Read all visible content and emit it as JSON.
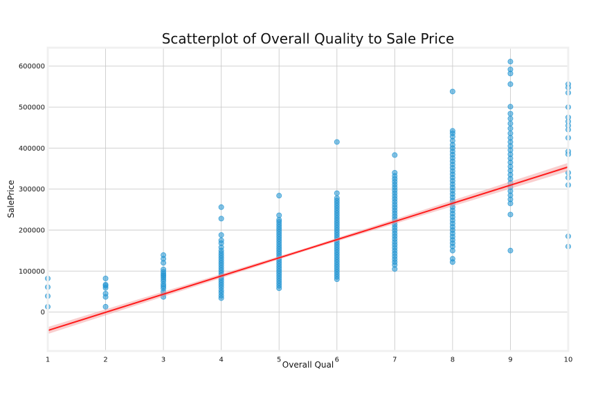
{
  "chart_data": {
    "type": "scatter",
    "title": "Scatterplot of Overall Quality to Sale Price",
    "xlabel": "Overall Qual",
    "ylabel": "SalePrice",
    "xlim": [
      1,
      10
    ],
    "ylim": [
      -95000,
      645000
    ],
    "x_ticks": [
      1,
      2,
      3,
      4,
      5,
      6,
      7,
      8,
      9,
      10
    ],
    "y_ticks": [
      0,
      100000,
      200000,
      300000,
      400000,
      500000,
      600000
    ],
    "grid": true,
    "legend": "none",
    "point_color": "#1f93d2",
    "regression_line": {
      "color": "#ff1a1a",
      "band_color": "#f4a6a6",
      "points": [
        [
          1,
          -45000
        ],
        [
          10,
          354000
        ]
      ]
    },
    "series": [
      {
        "points": [
          [
            1,
            82000
          ],
          [
            1,
            61000
          ],
          [
            1,
            39000
          ],
          [
            1,
            13000
          ],
          [
            2,
            82000
          ],
          [
            2,
            67000
          ],
          [
            2,
            64000
          ],
          [
            2,
            59000
          ],
          [
            2,
            45000
          ],
          [
            2,
            37000
          ],
          [
            2,
            13000
          ],
          [
            3,
            139000
          ],
          [
            3,
            130000
          ],
          [
            3,
            120000
          ],
          [
            3,
            104000
          ],
          [
            3,
            98000
          ],
          [
            3,
            93000
          ],
          [
            3,
            89000
          ],
          [
            3,
            85000
          ],
          [
            3,
            80000
          ],
          [
            3,
            75000
          ],
          [
            3,
            68000
          ],
          [
            3,
            63000
          ],
          [
            3,
            58000
          ],
          [
            3,
            50000
          ],
          [
            3,
            44000
          ],
          [
            3,
            37000
          ],
          [
            4,
            256000
          ],
          [
            4,
            228000
          ],
          [
            4,
            188000
          ],
          [
            4,
            175000
          ],
          [
            4,
            168000
          ],
          [
            4,
            158000
          ],
          [
            4,
            150000
          ],
          [
            4,
            144000
          ],
          [
            4,
            138000
          ],
          [
            4,
            132000
          ],
          [
            4,
            126000
          ],
          [
            4,
            120000
          ],
          [
            4,
            114000
          ],
          [
            4,
            108000
          ],
          [
            4,
            102000
          ],
          [
            4,
            96000
          ],
          [
            4,
            90000
          ],
          [
            4,
            84000
          ],
          [
            4,
            78000
          ],
          [
            4,
            72000
          ],
          [
            4,
            66000
          ],
          [
            4,
            60000
          ],
          [
            4,
            53000
          ],
          [
            4,
            47000
          ],
          [
            4,
            40000
          ],
          [
            4,
            34000
          ],
          [
            5,
            284000
          ],
          [
            5,
            236000
          ],
          [
            5,
            225000
          ],
          [
            5,
            220000
          ],
          [
            5,
            214000
          ],
          [
            5,
            208000
          ],
          [
            5,
            202000
          ],
          [
            5,
            196000
          ],
          [
            5,
            190000
          ],
          [
            5,
            184000
          ],
          [
            5,
            178000
          ],
          [
            5,
            172000
          ],
          [
            5,
            166000
          ],
          [
            5,
            160000
          ],
          [
            5,
            154000
          ],
          [
            5,
            148000
          ],
          [
            5,
            142000
          ],
          [
            5,
            136000
          ],
          [
            5,
            130000
          ],
          [
            5,
            124000
          ],
          [
            5,
            118000
          ],
          [
            5,
            112000
          ],
          [
            5,
            106000
          ],
          [
            5,
            100000
          ],
          [
            5,
            94000
          ],
          [
            5,
            88000
          ],
          [
            5,
            82000
          ],
          [
            5,
            76000
          ],
          [
            5,
            70000
          ],
          [
            5,
            64000
          ],
          [
            5,
            58000
          ],
          [
            6,
            415000
          ],
          [
            6,
            290000
          ],
          [
            6,
            278000
          ],
          [
            6,
            272000
          ],
          [
            6,
            266000
          ],
          [
            6,
            260000
          ],
          [
            6,
            254000
          ],
          [
            6,
            248000
          ],
          [
            6,
            242000
          ],
          [
            6,
            236000
          ],
          [
            6,
            230000
          ],
          [
            6,
            224000
          ],
          [
            6,
            218000
          ],
          [
            6,
            212000
          ],
          [
            6,
            206000
          ],
          [
            6,
            200000
          ],
          [
            6,
            194000
          ],
          [
            6,
            188000
          ],
          [
            6,
            182000
          ],
          [
            6,
            176000
          ],
          [
            6,
            170000
          ],
          [
            6,
            164000
          ],
          [
            6,
            158000
          ],
          [
            6,
            152000
          ],
          [
            6,
            146000
          ],
          [
            6,
            140000
          ],
          [
            6,
            134000
          ],
          [
            6,
            128000
          ],
          [
            6,
            122000
          ],
          [
            6,
            116000
          ],
          [
            6,
            110000
          ],
          [
            6,
            104000
          ],
          [
            6,
            98000
          ],
          [
            6,
            92000
          ],
          [
            6,
            86000
          ],
          [
            6,
            80000
          ],
          [
            7,
            383000
          ],
          [
            7,
            340000
          ],
          [
            7,
            332000
          ],
          [
            7,
            325000
          ],
          [
            7,
            318000
          ],
          [
            7,
            311000
          ],
          [
            7,
            304000
          ],
          [
            7,
            297000
          ],
          [
            7,
            290000
          ],
          [
            7,
            283000
          ],
          [
            7,
            276000
          ],
          [
            7,
            269000
          ],
          [
            7,
            262000
          ],
          [
            7,
            255000
          ],
          [
            7,
            248000
          ],
          [
            7,
            241000
          ],
          [
            7,
            234000
          ],
          [
            7,
            227000
          ],
          [
            7,
            220000
          ],
          [
            7,
            213000
          ],
          [
            7,
            206000
          ],
          [
            7,
            199000
          ],
          [
            7,
            192000
          ],
          [
            7,
            185000
          ],
          [
            7,
            178000
          ],
          [
            7,
            171000
          ],
          [
            7,
            164000
          ],
          [
            7,
            157000
          ],
          [
            7,
            150000
          ],
          [
            7,
            143000
          ],
          [
            7,
            136000
          ],
          [
            7,
            129000
          ],
          [
            7,
            122000
          ],
          [
            7,
            115000
          ],
          [
            7,
            105000
          ],
          [
            8,
            538000
          ],
          [
            8,
            442000
          ],
          [
            8,
            436000
          ],
          [
            8,
            428000
          ],
          [
            8,
            418000
          ],
          [
            8,
            408000
          ],
          [
            8,
            400000
          ],
          [
            8,
            392000
          ],
          [
            8,
            384000
          ],
          [
            8,
            376000
          ],
          [
            8,
            368000
          ],
          [
            8,
            360000
          ],
          [
            8,
            352000
          ],
          [
            8,
            344000
          ],
          [
            8,
            336000
          ],
          [
            8,
            328000
          ],
          [
            8,
            320000
          ],
          [
            8,
            312000
          ],
          [
            8,
            304000
          ],
          [
            8,
            296000
          ],
          [
            8,
            288000
          ],
          [
            8,
            280000
          ],
          [
            8,
            272000
          ],
          [
            8,
            264000
          ],
          [
            8,
            256000
          ],
          [
            8,
            248000
          ],
          [
            8,
            240000
          ],
          [
            8,
            232000
          ],
          [
            8,
            224000
          ],
          [
            8,
            216000
          ],
          [
            8,
            208000
          ],
          [
            8,
            200000
          ],
          [
            8,
            192000
          ],
          [
            8,
            184000
          ],
          [
            8,
            176000
          ],
          [
            8,
            168000
          ],
          [
            8,
            160000
          ],
          [
            8,
            150000
          ],
          [
            8,
            130000
          ],
          [
            8,
            122000
          ],
          [
            9,
            611000
          ],
          [
            9,
            592000
          ],
          [
            9,
            582000
          ],
          [
            9,
            556000
          ],
          [
            9,
            501000
          ],
          [
            9,
            484000
          ],
          [
            9,
            472000
          ],
          [
            9,
            460000
          ],
          [
            9,
            448000
          ],
          [
            9,
            436000
          ],
          [
            9,
            425000
          ],
          [
            9,
            415000
          ],
          [
            9,
            405000
          ],
          [
            9,
            395000
          ],
          [
            9,
            385000
          ],
          [
            9,
            375000
          ],
          [
            9,
            365000
          ],
          [
            9,
            355000
          ],
          [
            9,
            345000
          ],
          [
            9,
            335000
          ],
          [
            9,
            325000
          ],
          [
            9,
            315000
          ],
          [
            9,
            305000
          ],
          [
            9,
            295000
          ],
          [
            9,
            285000
          ],
          [
            9,
            275000
          ],
          [
            9,
            265000
          ],
          [
            9,
            238000
          ],
          [
            9,
            150000
          ],
          [
            10,
            556000
          ],
          [
            10,
            548000
          ],
          [
            10,
            535000
          ],
          [
            10,
            500000
          ],
          [
            10,
            475000
          ],
          [
            10,
            465000
          ],
          [
            10,
            455000
          ],
          [
            10,
            445000
          ],
          [
            10,
            425000
          ],
          [
            10,
            392000
          ],
          [
            10,
            385000
          ],
          [
            10,
            340000
          ],
          [
            10,
            328000
          ],
          [
            10,
            310000
          ],
          [
            10,
            185000
          ],
          [
            10,
            160000
          ]
        ]
      }
    ]
  }
}
